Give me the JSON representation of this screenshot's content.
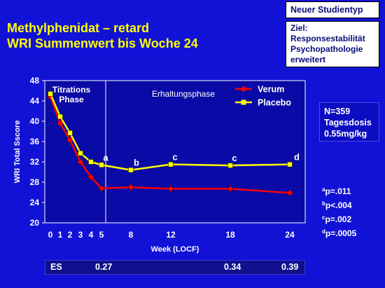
{
  "title": {
    "line1": "Methylphenidat – retard",
    "line2": "WRI Summenwert bis Woche 24"
  },
  "study_box": {
    "type": "Neuer Studientyp",
    "goal_lines": [
      "Ziel:",
      "Responsestabilität",
      "Psychopathologie",
      "erweitert"
    ]
  },
  "info_box": [
    "N=359",
    "Tagesdosis",
    "0.55mg/kg"
  ],
  "p_values": [
    {
      "sup": "a",
      "text": "p=.011"
    },
    {
      "sup": "b",
      "text": "p<.004"
    },
    {
      "sup": "c",
      "text": "p=.002"
    },
    {
      "sup": "d",
      "text": "p=.0005"
    }
  ],
  "effect_size": {
    "label": "ES",
    "values": [
      {
        "week": 5,
        "text": "0.27"
      },
      {
        "week": 18,
        "text": "0.34"
      },
      {
        "week": 24,
        "text": "0.39"
      }
    ]
  },
  "colors": {
    "background": "#1212d6",
    "title": "#ffff00",
    "verum": "#ff0000",
    "placebo": "#ffff00",
    "plot_area": "#0a0aa6"
  },
  "chart_data": {
    "type": "line",
    "xlabel": "Week (LOCF)",
    "ylabel": "WRI Total Sscore",
    "ylim": [
      20,
      48
    ],
    "yticks": [
      20,
      24,
      28,
      32,
      36,
      40,
      44,
      48
    ],
    "x": [
      0,
      1,
      2,
      3,
      4,
      5,
      8,
      12,
      18,
      24
    ],
    "x_tick_labels": [
      "0",
      "1",
      "2",
      "3",
      "4",
      "5",
      "8",
      "12",
      "18",
      "24"
    ],
    "phase_labels": {
      "titration": [
        "Titrations",
        "Phase"
      ],
      "maintenance": "Erhaltungsphase"
    },
    "phase_divider_week": 5,
    "series": [
      {
        "name": "Verum",
        "color": "#ff0000",
        "marker": "diamond",
        "values": [
          44.8,
          39.6,
          36.3,
          32.0,
          29.0,
          26.8,
          27.0,
          26.7,
          26.7,
          25.9
        ]
      },
      {
        "name": "Placebo",
        "color": "#ffff00",
        "marker": "square",
        "values": [
          45.4,
          40.9,
          37.7,
          33.7,
          32.0,
          31.4,
          30.4,
          31.5,
          31.3,
          31.5
        ]
      }
    ],
    "significance_labels": [
      {
        "week": 5,
        "label": "a"
      },
      {
        "week": 8,
        "label": "b"
      },
      {
        "week": 12,
        "label": "c"
      },
      {
        "week": 18,
        "label": "c"
      },
      {
        "week": 24,
        "label": "d"
      }
    ],
    "legend": "top-right",
    "grid": false
  }
}
